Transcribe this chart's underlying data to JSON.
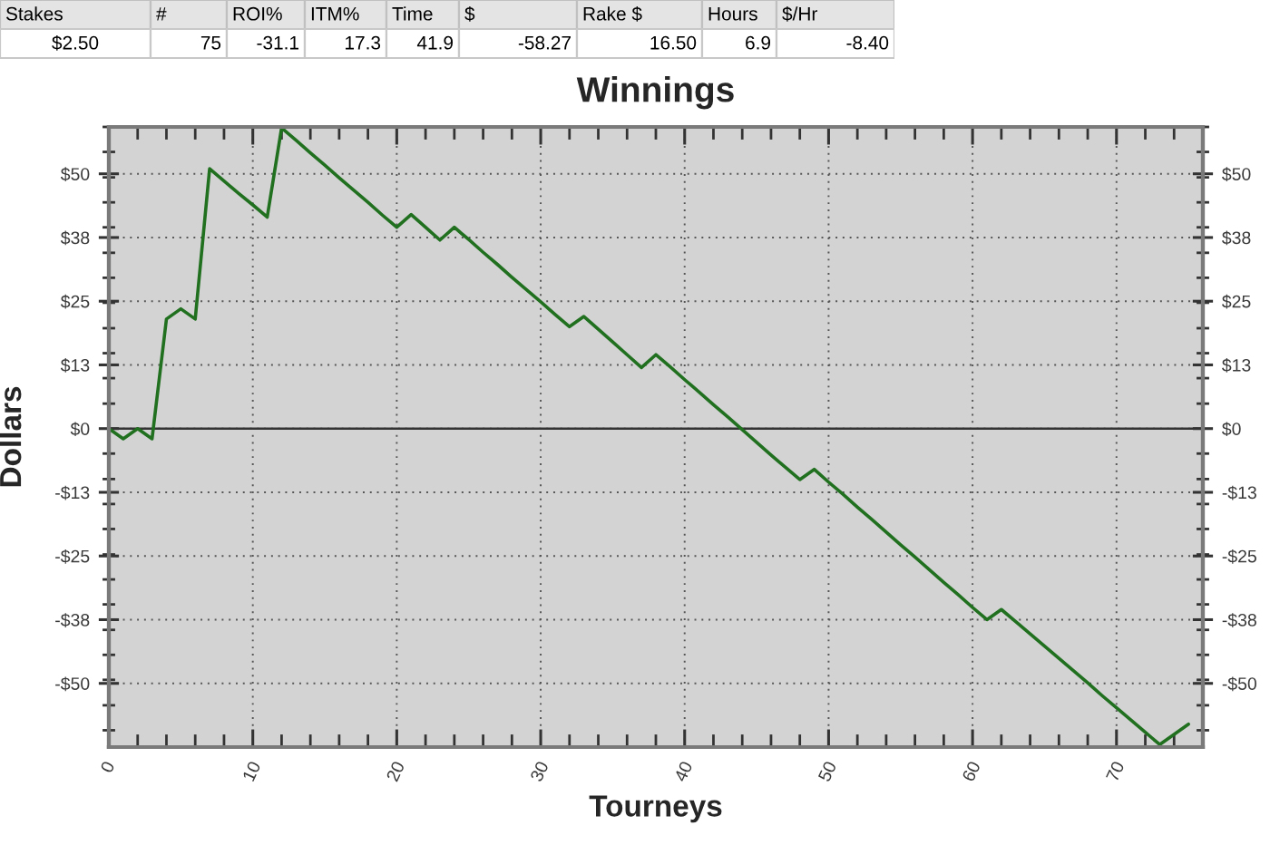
{
  "chart_data": [
    {
      "type": "other",
      "categories": [
        "Stakes",
        "#",
        "ROI%",
        "ITM%",
        "Time",
        "$",
        "Rake $",
        "Hours",
        "$/Hr"
      ],
      "value_labels": [
        "$2.50",
        "75",
        "-31.1",
        "17.3",
        "41.9",
        "-58.27",
        "16.50",
        "6.9",
        "-8.40"
      ]
    },
    {
      "type": "line",
      "title": "Winnings",
      "xlabel": "Tourneys",
      "ylabel": "Dollars",
      "x": [
        0,
        1,
        2,
        3,
        4,
        5,
        6,
        7,
        8,
        9,
        10,
        11,
        12,
        13,
        14,
        15,
        16,
        17,
        18,
        19,
        20,
        21,
        22,
        23,
        24,
        25,
        26,
        27,
        28,
        29,
        30,
        31,
        32,
        33,
        34,
        35,
        36,
        37,
        38,
        39,
        40,
        41,
        42,
        43,
        44,
        45,
        46,
        47,
        48,
        49,
        50,
        51,
        52,
        53,
        54,
        55,
        56,
        57,
        58,
        59,
        60,
        61,
        62,
        63,
        64,
        65,
        66,
        67,
        68,
        69,
        70,
        71,
        72,
        73,
        74,
        75
      ],
      "series": [
        {
          "color": "#207020",
          "values": [
            0,
            -2,
            0,
            -2,
            21.5,
            23.5,
            21.5,
            51,
            48.6,
            46.2,
            43.9,
            41.5,
            59,
            56.6,
            54.1,
            51.7,
            49.2,
            46.8,
            44.4,
            41.9,
            39.5,
            42,
            39.5,
            37,
            39.5,
            37.1,
            34.6,
            32.2,
            29.7,
            27.3,
            24.9,
            22.4,
            20,
            22,
            19.5,
            17,
            14.5,
            12,
            14.5,
            12.1,
            9.6,
            7.2,
            4.7,
            2.3,
            -0.2,
            -2.7,
            -5.2,
            -7.6,
            -10,
            -8,
            -10.5,
            -12.9,
            -15.4,
            -17.8,
            -20.3,
            -22.8,
            -25.2,
            -27.7,
            -30.2,
            -32.6,
            -35.1,
            -37.5,
            -35.5,
            -37.9,
            -40.3,
            -42.7,
            -45.1,
            -47.5,
            -49.9,
            -52.4,
            -54.8,
            -57.2,
            -59.6,
            -62,
            -60,
            -58
          ]
        }
      ],
      "xlim": [
        0,
        76
      ],
      "xticks": [
        0,
        {
          "value": 2,
          "label": null
        },
        {
          "value": 4,
          "label": null
        },
        {
          "value": 6,
          "label": null
        },
        {
          "value": 8,
          "label": null
        },
        10,
        {
          "value": 12,
          "label": null
        },
        {
          "value": 14,
          "label": null
        },
        {
          "value": 16,
          "label": null
        },
        {
          "value": 18,
          "label": null
        },
        20,
        {
          "value": 22,
          "label": null
        },
        {
          "value": 24,
          "label": null
        },
        {
          "value": 26,
          "label": null
        },
        {
          "value": 28,
          "label": null
        },
        30,
        {
          "value": 32,
          "label": null
        },
        {
          "value": 34,
          "label": null
        },
        {
          "value": 36,
          "label": null
        },
        {
          "value": 38,
          "label": null
        },
        40,
        {
          "value": 42,
          "label": null
        },
        {
          "value": 44,
          "label": null
        },
        {
          "value": 46,
          "label": null
        },
        {
          "value": 48,
          "label": null
        },
        50,
        {
          "value": 52,
          "label": null
        },
        {
          "value": 54,
          "label": null
        },
        {
          "value": 56,
          "label": null
        },
        {
          "value": 58,
          "label": null
        },
        60,
        {
          "value": 62,
          "label": null
        },
        {
          "value": 64,
          "label": null
        },
        {
          "value": 66,
          "label": null
        },
        {
          "value": 68,
          "label": null
        },
        70,
        {
          "value": 72,
          "label": null
        },
        {
          "value": 74,
          "label": null
        }
      ],
      "ylim": [
        -62.5,
        59.2
      ],
      "yticks": [
        {
          "value": -59.2,
          "label": null
        },
        {
          "value": -54.3,
          "label": null
        },
        {
          "value": -50,
          "label": "-$50"
        },
        {
          "value": -49.3,
          "label": null
        },
        {
          "value": -44.4,
          "label": null
        },
        {
          "value": -39.5,
          "label": null
        },
        {
          "value": -37.5,
          "label": "-$38"
        },
        {
          "value": -34.5,
          "label": null
        },
        {
          "value": -29.6,
          "label": null
        },
        {
          "value": -25,
          "label": "-$25"
        },
        {
          "value": -24.7,
          "label": null
        },
        {
          "value": -19.7,
          "label": null
        },
        {
          "value": -14.8,
          "label": null
        },
        {
          "value": -12.5,
          "label": "-$13"
        },
        {
          "value": -9.9,
          "label": null
        },
        {
          "value": -4.9,
          "label": null
        },
        {
          "value": 0,
          "label": "$0"
        },
        {
          "value": 4.9,
          "label": null
        },
        {
          "value": 9.9,
          "label": null
        },
        {
          "value": 12.5,
          "label": "$13"
        },
        {
          "value": 14.8,
          "label": null
        },
        {
          "value": 19.7,
          "label": null
        },
        {
          "value": 24.7,
          "label": null
        },
        {
          "value": 25,
          "label": "$25"
        },
        {
          "value": 29.6,
          "label": null
        },
        {
          "value": 34.5,
          "label": null
        },
        {
          "value": 37.5,
          "label": "$38"
        },
        {
          "value": 39.5,
          "label": null
        },
        {
          "value": 44.4,
          "label": null
        },
        {
          "value": 49.3,
          "label": null
        },
        {
          "value": 50,
          "label": "$50"
        },
        {
          "value": 54.3,
          "label": null
        },
        {
          "value": 59.2,
          "label": null
        }
      ],
      "y2lim": [
        -62.5,
        59.2
      ],
      "y2ticks": [
        {
          "value": -59.2,
          "label": null
        },
        {
          "value": -54.3,
          "label": null
        },
        {
          "value": -50,
          "label": "-$50"
        },
        {
          "value": -49.3,
          "label": null
        },
        {
          "value": -44.4,
          "label": null
        },
        {
          "value": -39.5,
          "label": null
        },
        {
          "value": -37.5,
          "label": "-$38"
        },
        {
          "value": -34.5,
          "label": null
        },
        {
          "value": -29.6,
          "label": null
        },
        {
          "value": -25,
          "label": "-$25"
        },
        {
          "value": -24.7,
          "label": null
        },
        {
          "value": -19.7,
          "label": null
        },
        {
          "value": -14.8,
          "label": null
        },
        {
          "value": -12.5,
          "label": "-$13"
        },
        {
          "value": -9.9,
          "label": null
        },
        {
          "value": -4.9,
          "label": null
        },
        {
          "value": 0,
          "label": "$0"
        },
        {
          "value": 4.9,
          "label": null
        },
        {
          "value": 9.9,
          "label": null
        },
        {
          "value": 12.5,
          "label": "$13"
        },
        {
          "value": 14.8,
          "label": null
        },
        {
          "value": 19.7,
          "label": null
        },
        {
          "value": 24.7,
          "label": null
        },
        {
          "value": 25,
          "label": "$25"
        },
        {
          "value": 29.6,
          "label": null
        },
        {
          "value": 34.5,
          "label": null
        },
        {
          "value": 37.5,
          "label": "$38"
        },
        {
          "value": 39.5,
          "label": null
        },
        {
          "value": 44.4,
          "label": null
        },
        {
          "value": 49.3,
          "label": null
        },
        {
          "value": 50,
          "label": "$50"
        },
        {
          "value": 54.3,
          "label": null
        },
        {
          "value": 59.2,
          "label": null
        }
      ],
      "ref_lines": [
        {
          "axis": "y",
          "value": 0,
          "color": "#333333"
        }
      ],
      "grid": true
    }
  ]
}
